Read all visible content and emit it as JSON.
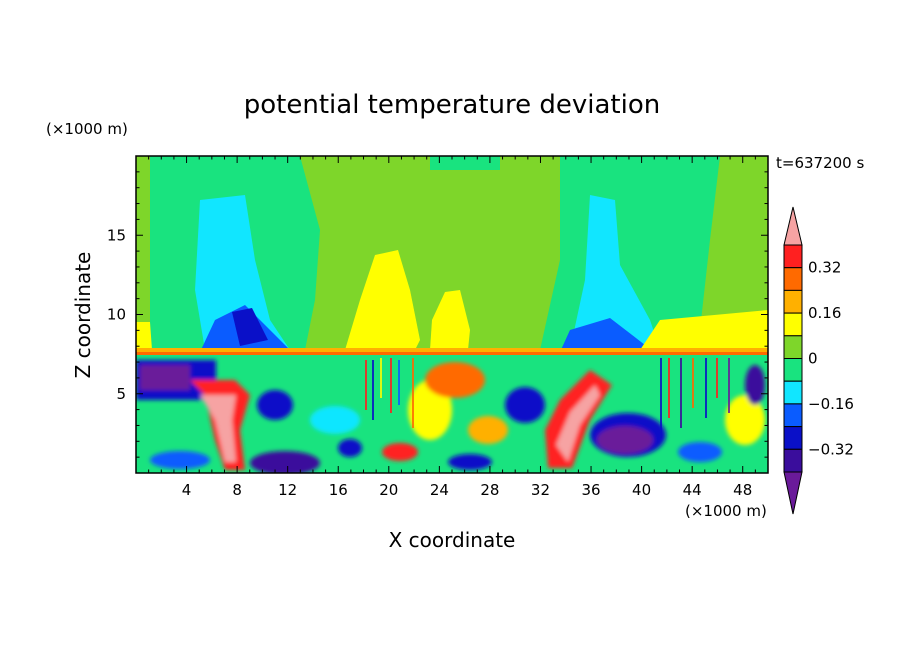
{
  "chart_data": {
    "type": "heatmap",
    "title": "potential temperature deviation",
    "xlabel": "X coordinate",
    "ylabel": "Z coordinate",
    "x_unit": "(×1000 m)",
    "y_unit": "(×1000 m)",
    "time_label": "t=637200 s",
    "xlim": [
      0,
      50
    ],
    "ylim": [
      0,
      20
    ],
    "x_ticks": [
      4,
      8,
      12,
      16,
      20,
      24,
      28,
      32,
      36,
      40,
      44,
      48
    ],
    "y_ticks": [
      5,
      10,
      15
    ],
    "colorbar": {
      "levels": [
        -0.4,
        -0.32,
        -0.24,
        -0.16,
        -0.08,
        0,
        0.08,
        0.16,
        0.24,
        0.32,
        0.4
      ],
      "labels": [
        "0.32",
        "0.16",
        "0",
        "−0.16",
        "−0.32"
      ],
      "label_values": [
        0.32,
        0.16,
        0,
        -0.16,
        -0.32
      ],
      "colors": [
        "#6a1a9a",
        "#3a0d9c",
        "#0a10c8",
        "#0a5cff",
        "#11e6ff",
        "#19e37f",
        "#7ed62a",
        "#ffff00",
        "#ffb000",
        "#ff6a00",
        "#ff2020",
        "#f6a3a3"
      ]
    }
  }
}
